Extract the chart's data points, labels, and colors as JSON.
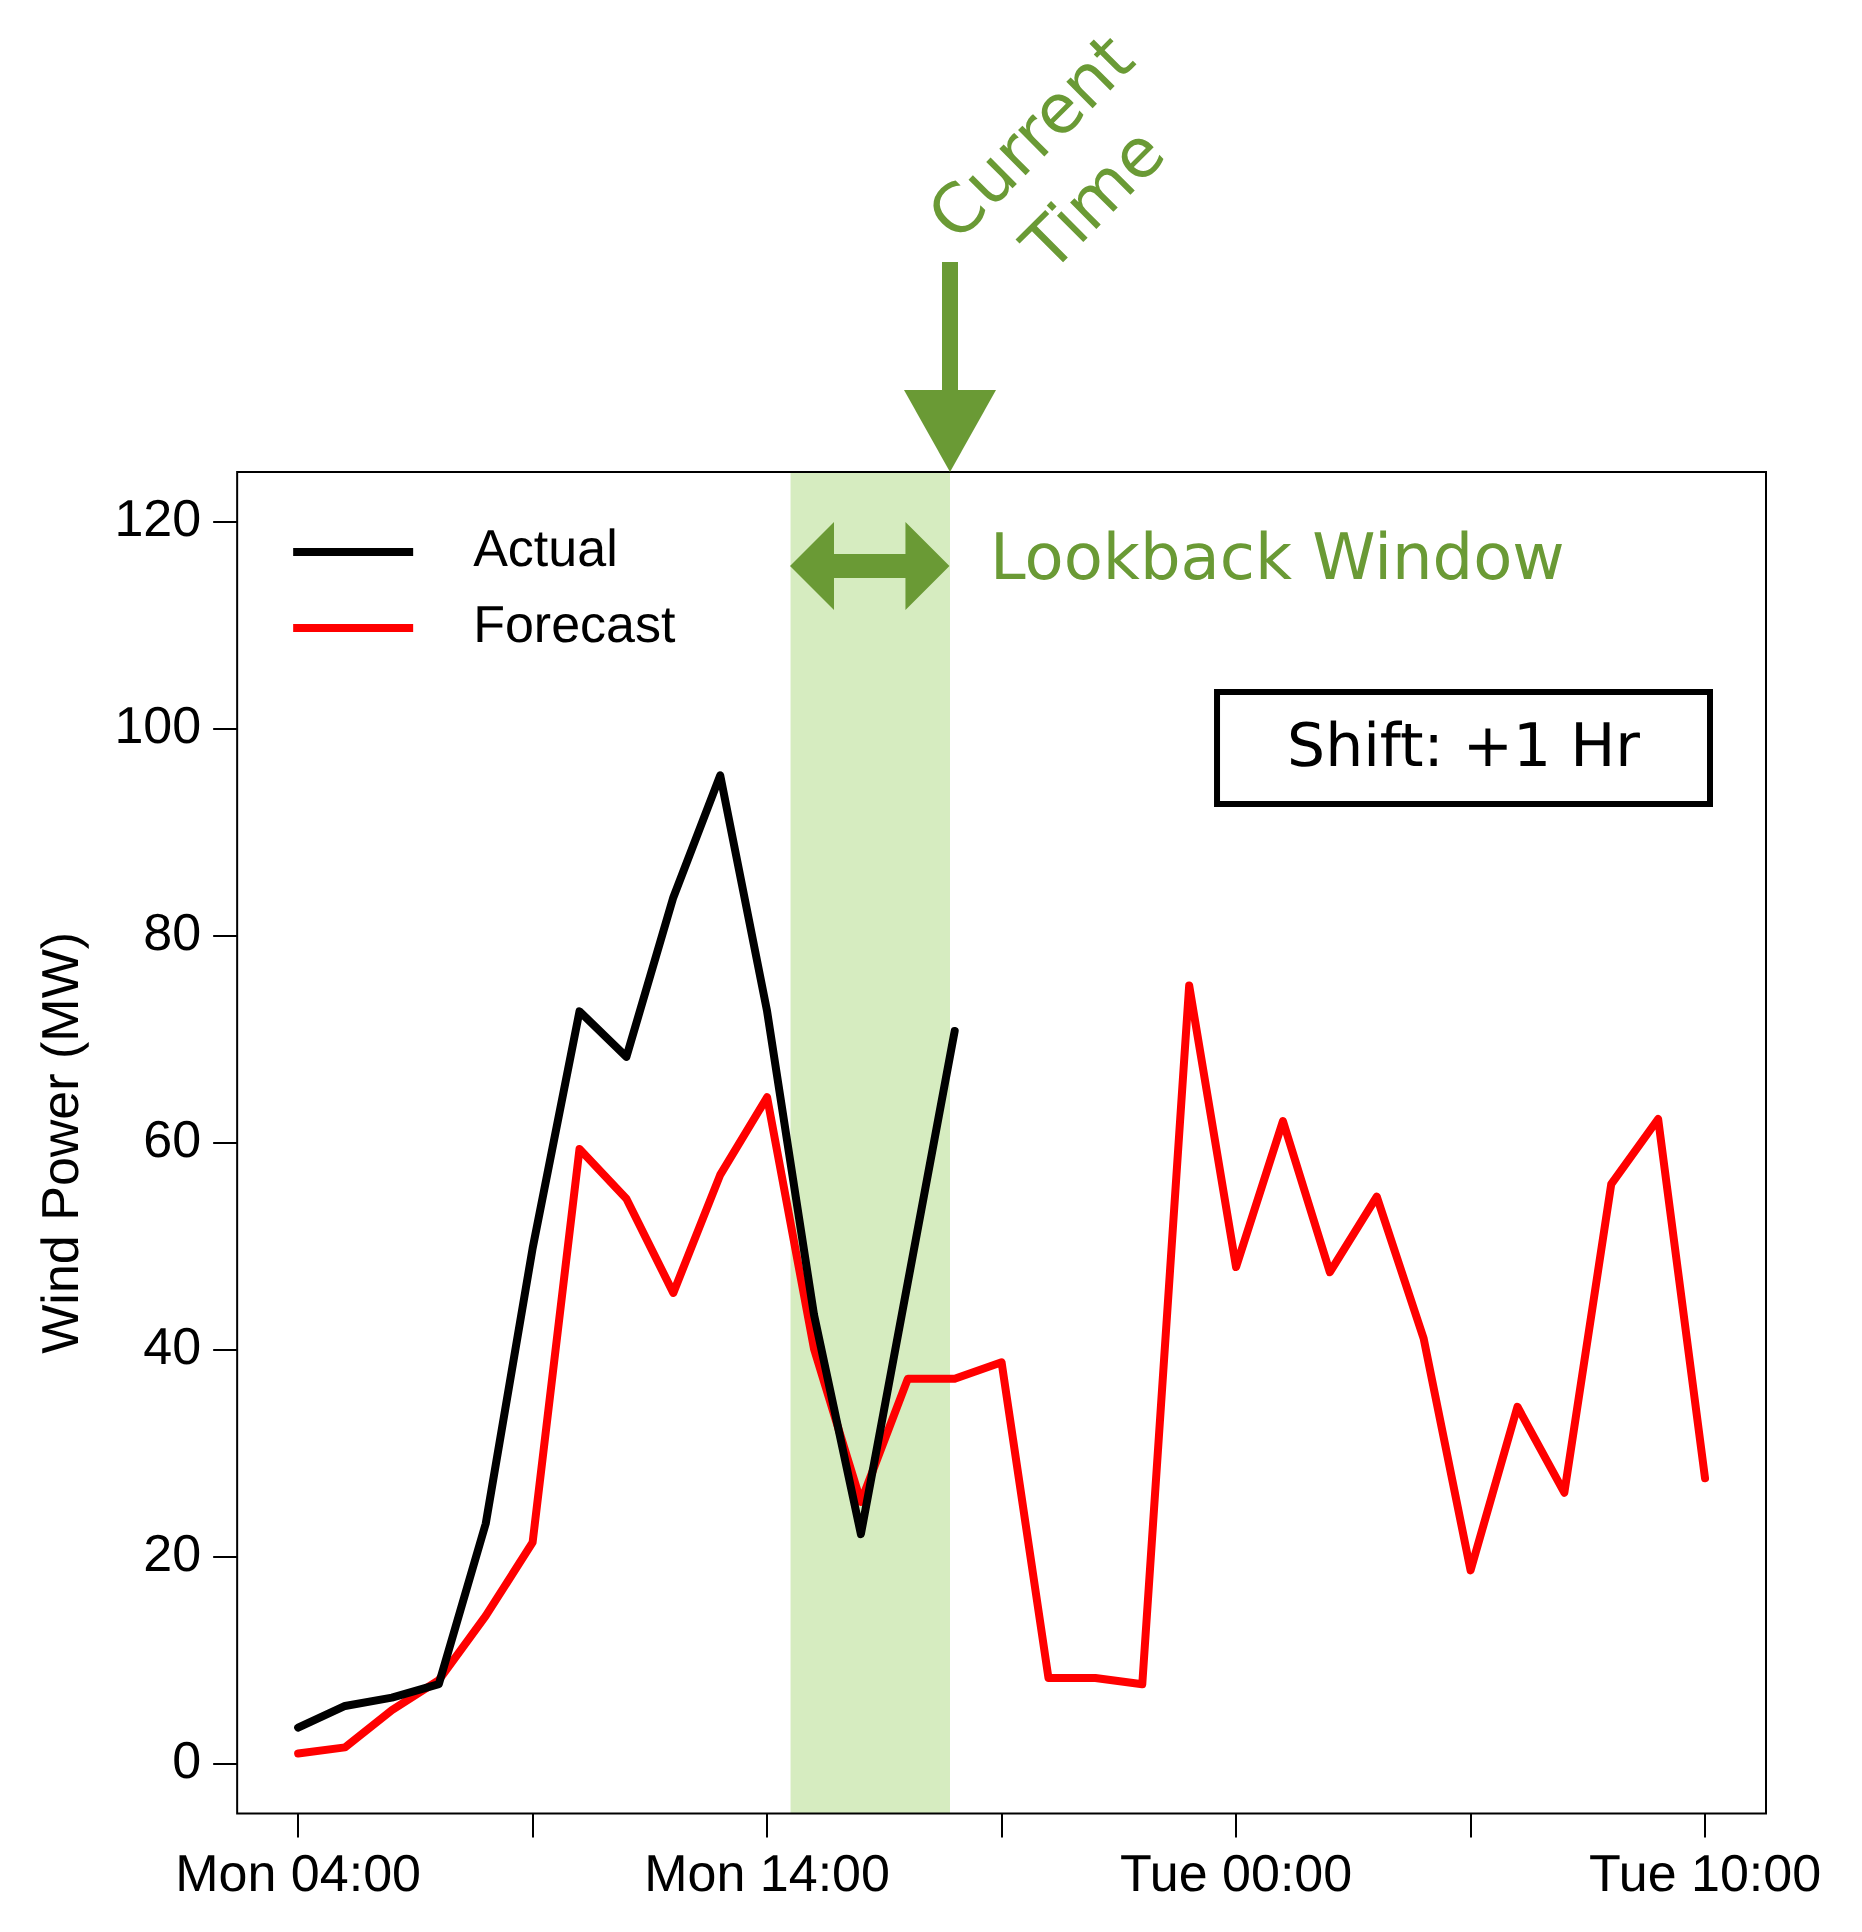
{
  "chart_data": {
    "type": "line",
    "ylabel": "Wind Power (MW)",
    "categories": [
      "Mon 04:00",
      null,
      null,
      null,
      null,
      null,
      null,
      null,
      null,
      null,
      "Mon 14:00",
      null,
      null,
      null,
      null,
      null,
      null,
      null,
      null,
      null,
      "Tue 00:00",
      null,
      null,
      null,
      null,
      null,
      null,
      null,
      null,
      null,
      "Tue 10:00"
    ],
    "ylim": [
      -4.8,
      124.8
    ],
    "yticks": [
      0,
      20,
      40,
      60,
      80,
      100,
      120
    ],
    "series": [
      {
        "name": "Actual",
        "color": "#000000",
        "values": [
          3.5,
          5.6,
          6.4,
          7.7,
          23.2,
          49.8,
          72.7,
          68.3,
          83.7,
          95.5,
          72.7,
          43.4,
          22.2,
          46.5,
          70.8,
          null,
          null,
          null,
          null,
          null,
          null,
          null,
          null,
          null,
          null,
          null,
          null,
          null,
          null,
          null,
          null
        ]
      },
      {
        "name": "Forecast",
        "color": "#ff0000",
        "values": [
          1.0,
          1.6,
          5.2,
          8.1,
          14.3,
          21.4,
          59.4,
          54.6,
          45.5,
          56.9,
          64.4,
          40.1,
          25.3,
          37.2,
          37.2,
          38.8,
          8.3,
          8.3,
          7.7,
          75.2,
          48.0,
          62.1,
          47.5,
          54.8,
          41.1,
          18.7,
          34.5,
          26.2,
          56.0,
          62.3,
          27.6
        ]
      }
    ],
    "annotations": [
      "Lookback Window",
      "Current Time",
      "Shift: +1 Hr"
    ],
    "legend": "top left",
    "grid": false,
    "line_style": "solid",
    "marker": "none"
  }
}
